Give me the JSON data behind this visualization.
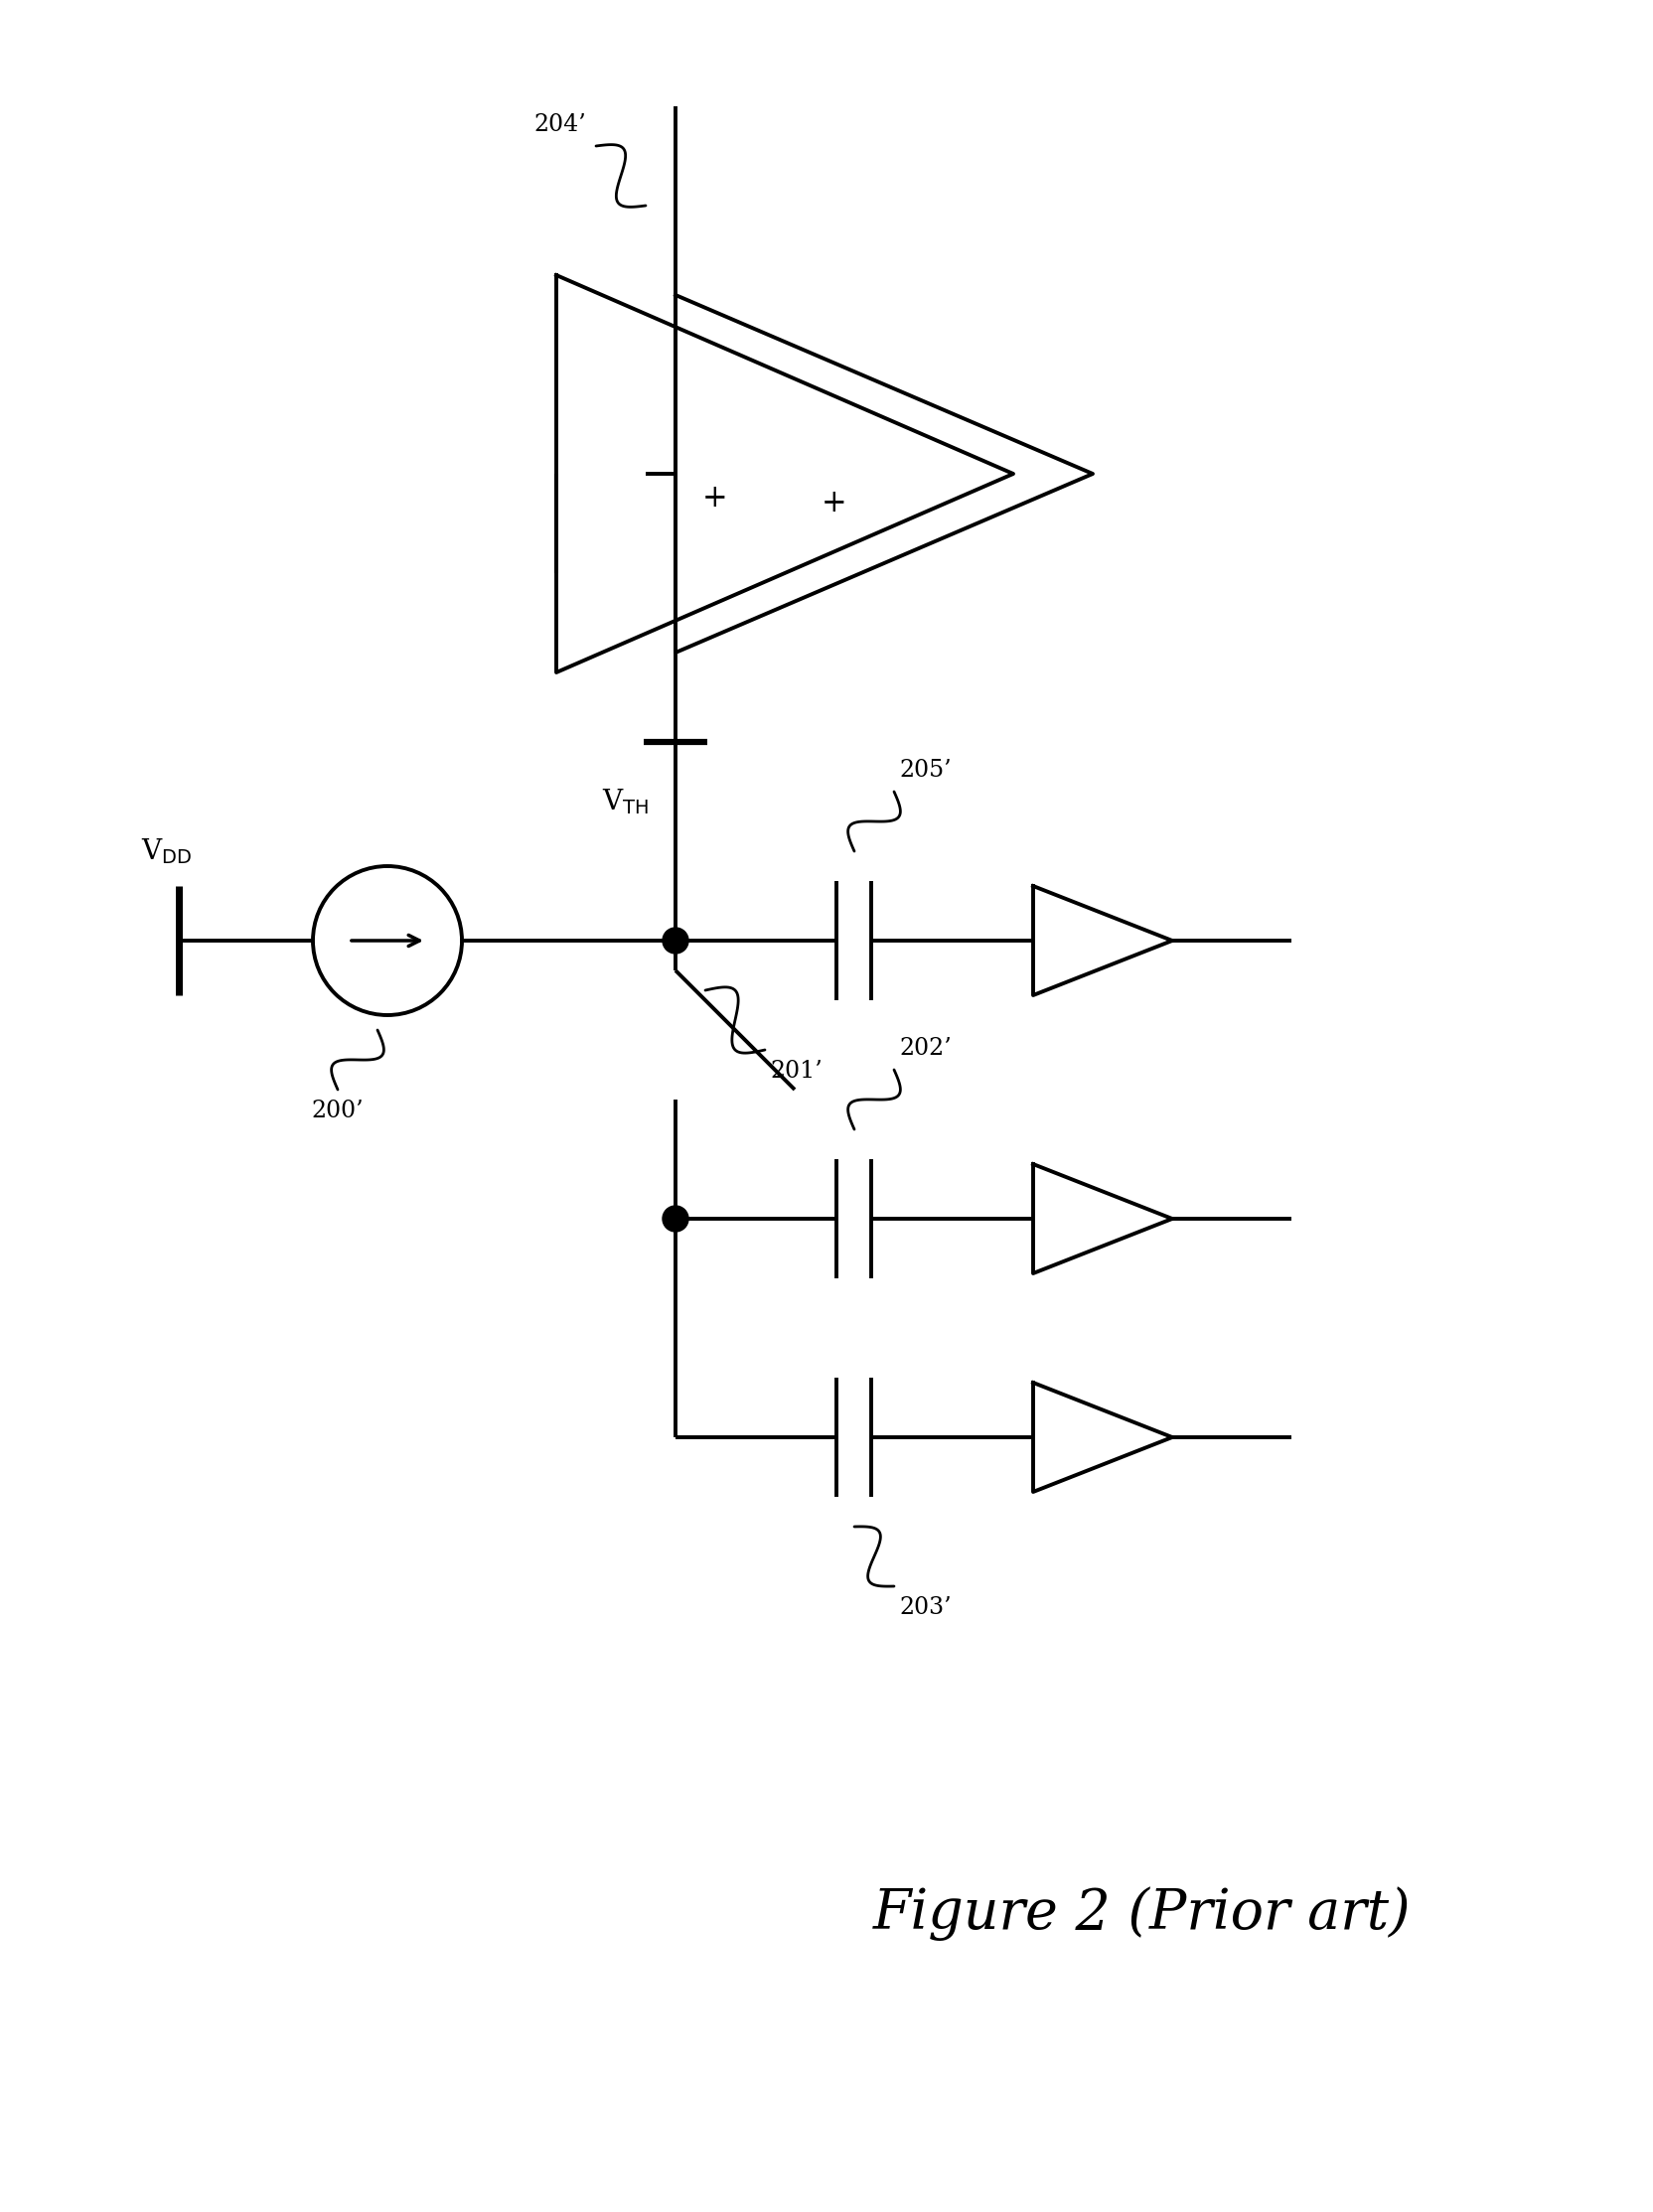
{
  "title": "Figure 2 (Prior art)",
  "background_color": "#ffffff",
  "line_color": "#000000",
  "line_width": 2.8,
  "fig_width": 16.64,
  "fig_height": 22.27,
  "labels": {
    "VDD": "V$_\\mathrm{DD}$",
    "VTH": "V$_\\mathrm{TH}$",
    "200": "200’",
    "201": "201’",
    "202": "202’",
    "203": "203’",
    "204": "204’",
    "205": "205’"
  }
}
